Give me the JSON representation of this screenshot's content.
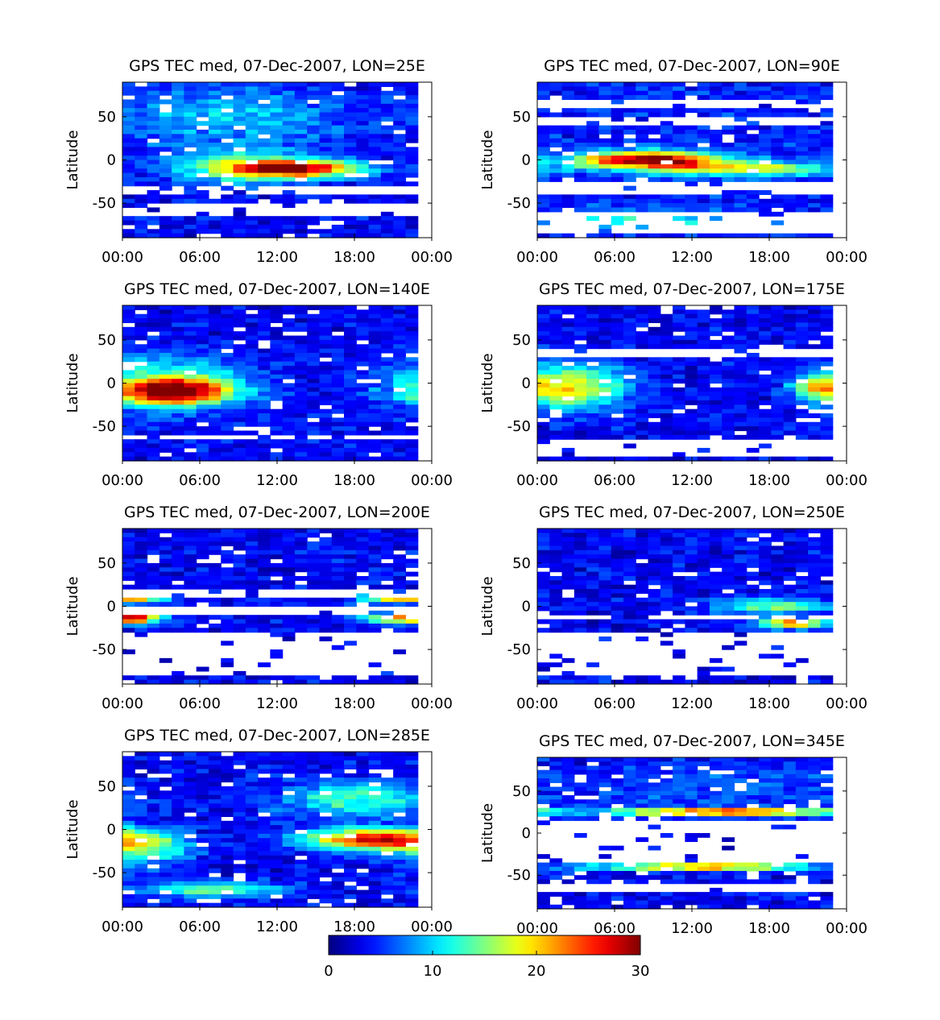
{
  "chart_data": {
    "type": "heatmap",
    "colorbar": {
      "ticks": [
        "0",
        "10",
        "20",
        "30"
      ],
      "range": [
        0,
        30
      ],
      "colormap": "jet"
    },
    "x_ticks": [
      "00:00",
      "06:00",
      "12:00",
      "18:00",
      "00:00"
    ],
    "x_range_hours": [
      0,
      24
    ],
    "y_ticks": [
      "50",
      "0",
      "-50"
    ],
    "y_range": [
      -90,
      90
    ],
    "ylabel": "Latitude",
    "panels": [
      {
        "title": "GPS TEC med, 07-Dec-2007, LON=25E",
        "coverage": "full",
        "gaps": [
          [
            -42,
            -30
          ],
          [
            -64,
            -52
          ]
        ],
        "features": [
          {
            "lat": -10,
            "hour": 13.5,
            "sd_lat": 7,
            "sd_hour": 3.5,
            "tec": 24
          },
          {
            "lat": -8,
            "hour": 9,
            "sd_lat": 14,
            "sd_hour": 4,
            "tec": 10
          },
          {
            "lat": 50,
            "hour": 8,
            "sd_lat": 25,
            "sd_hour": 7,
            "tec": 6
          }
        ],
        "base_tec": 2
      },
      {
        "title": "GPS TEC med, 07-Dec-2007, LON=90E",
        "coverage": "full",
        "gaps": [
          [
            -84,
            -58
          ],
          [
            -40,
            -24
          ],
          [
            40,
            50
          ],
          [
            60,
            72
          ]
        ],
        "features": [
          {
            "lat": 0,
            "hour": 8.5,
            "sd_lat": 7,
            "sd_hour": 4,
            "tec": 26
          },
          {
            "lat": -10,
            "hour": 16,
            "sd_lat": 6,
            "sd_hour": 5,
            "tec": 14
          },
          {
            "lat": -70,
            "hour": 8,
            "sd_lat": 8,
            "sd_hour": 5,
            "tec": 9
          }
        ],
        "base_tec": 3
      },
      {
        "title": "GPS TEC med, 07-Dec-2007, LON=140E",
        "coverage": "full",
        "gaps": [
          [
            -66,
            -58
          ]
        ],
        "features": [
          {
            "lat": -10,
            "hour": 4,
            "sd_lat": 10,
            "sd_hour": 3,
            "tec": 24
          },
          {
            "lat": 0,
            "hour": 3,
            "sd_lat": 22,
            "sd_hour": 4.5,
            "tec": 10
          }
        ],
        "base_tec": 2
      },
      {
        "title": "GPS TEC med, 07-Dec-2007, LON=175E",
        "coverage": "full",
        "gaps": [
          [
            28,
            38
          ],
          [
            -85,
            -66
          ]
        ],
        "features": [
          {
            "lat": -5,
            "hour": 2.5,
            "sd_lat": 18,
            "sd_hour": 3,
            "tec": 16
          },
          {
            "lat": -5,
            "hour": 22,
            "sd_lat": 10,
            "sd_hour": 1.5,
            "tec": 13
          }
        ],
        "base_tec": 2
      },
      {
        "title": "GPS TEC med, 07-Dec-2007, LON=200E",
        "coverage": "full",
        "gaps": [
          [
            -78,
            -30
          ],
          [
            12,
            22
          ],
          [
            -2,
            -8
          ]
        ],
        "features": [
          {
            "lat": 10,
            "hour": 1,
            "sd_lat": 4,
            "sd_hour": 1.5,
            "tec": 20
          },
          {
            "lat": -14,
            "hour": 1,
            "sd_lat": 4,
            "sd_hour": 1.5,
            "tec": 22
          },
          {
            "lat": -14,
            "hour": 21.5,
            "sd_lat": 4,
            "sd_hour": 2,
            "tec": 20
          },
          {
            "lat": 10,
            "hour": 21.5,
            "sd_lat": 4,
            "sd_hour": 2,
            "tec": 18
          }
        ],
        "base_tec": 2
      },
      {
        "title": "GPS TEC med, 07-Dec-2007, LON=250E",
        "coverage": "full",
        "gaps": [
          [
            -80,
            -32
          ],
          [
            -8,
            -14
          ]
        ],
        "features": [
          {
            "lat": -20,
            "hour": 20,
            "sd_lat": 4,
            "sd_hour": 2,
            "tec": 20
          },
          {
            "lat": 0,
            "hour": 18.5,
            "sd_lat": 6,
            "sd_hour": 3,
            "tec": 12
          }
        ],
        "base_tec": 2
      },
      {
        "title": "GPS TEC med, 07-Dec-2007, LON=285E",
        "coverage": "full",
        "gaps": [],
        "features": [
          {
            "lat": -12,
            "hour": 19.5,
            "sd_lat": 9,
            "sd_hour": 3.5,
            "tec": 24
          },
          {
            "lat": -20,
            "hour": 1.5,
            "sd_lat": 14,
            "sd_hour": 2.5,
            "tec": 12
          },
          {
            "lat": 35,
            "hour": 18,
            "sd_lat": 14,
            "sd_hour": 4,
            "tec": 10
          },
          {
            "lat": -70,
            "hour": 7,
            "sd_lat": 6,
            "sd_hour": 4,
            "tec": 11
          }
        ],
        "base_tec": 2
      },
      {
        "title": "GPS TEC med, 07-Dec-2007, LON=345E",
        "coverage": "full",
        "gaps": [
          [
            -34,
            16
          ],
          [
            -72,
            -58
          ]
        ],
        "features": [
          {
            "lat": 25,
            "hour": 15,
            "sd_lat": 3,
            "sd_hour": 7,
            "tec": 24
          },
          {
            "lat": -40,
            "hour": 13,
            "sd_lat": 3,
            "sd_hour": 6,
            "tec": 22
          },
          {
            "lat": 55,
            "hour": 14,
            "sd_lat": 20,
            "sd_hour": 10,
            "tec": 3
          }
        ],
        "base_tec": 2
      }
    ]
  }
}
